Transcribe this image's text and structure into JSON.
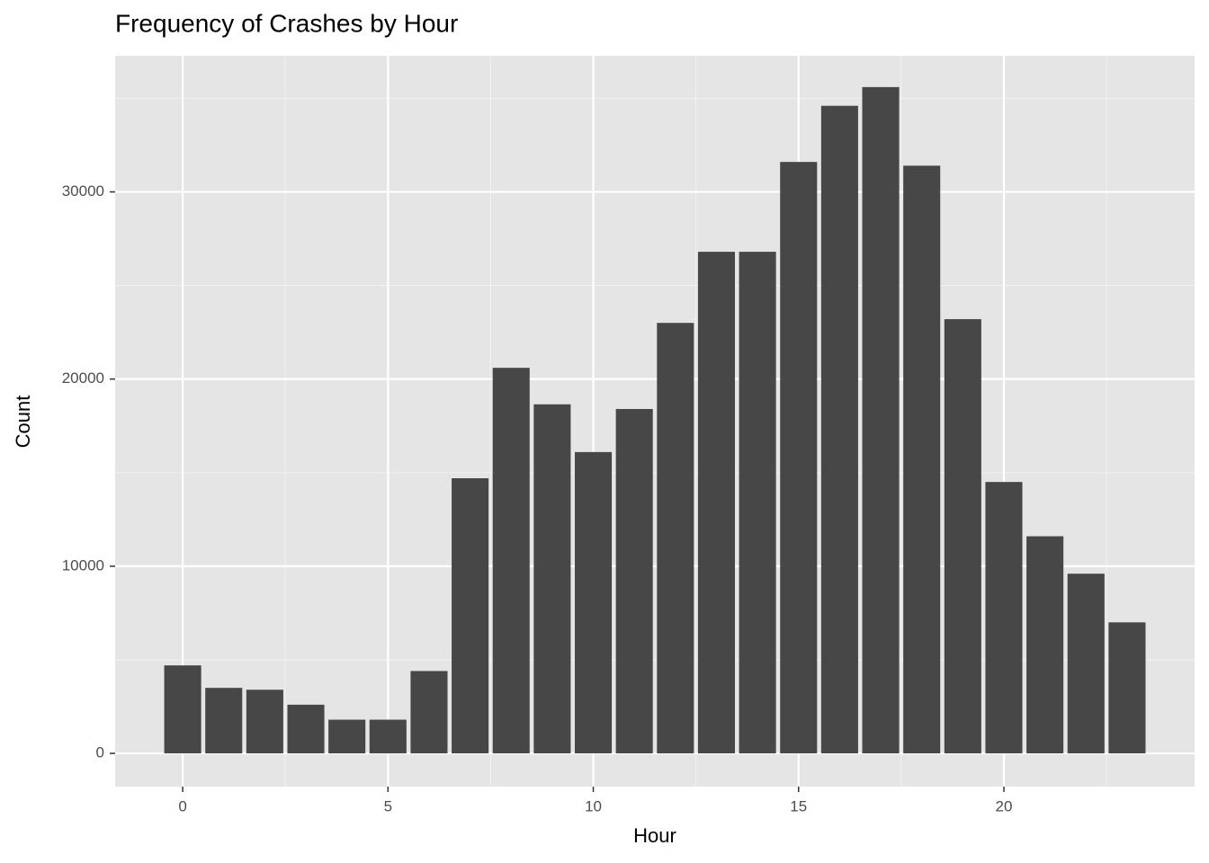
{
  "chart_data": {
    "type": "bar",
    "title": "Frequency of Crashes by Hour",
    "x_label": "Hour",
    "y_label": "Count",
    "x": [
      0,
      1,
      2,
      3,
      4,
      5,
      6,
      7,
      8,
      9,
      10,
      11,
      12,
      13,
      14,
      15,
      16,
      17,
      18,
      19,
      20,
      21,
      22,
      23
    ],
    "values": [
      4700,
      3500,
      3400,
      2600,
      1800,
      1800,
      4400,
      14700,
      20600,
      18650,
      16100,
      18400,
      23000,
      26800,
      26800,
      31600,
      34600,
      35600,
      31400,
      23200,
      14500,
      11600,
      9600,
      7000
    ],
    "color": "#474747",
    "xlim": [
      -1.645,
      24.645
    ],
    "xticks": [
      0,
      5,
      10,
      15,
      20
    ],
    "ylim": [
      -1775,
      37275
    ],
    "yticks": [
      0,
      10000,
      20000,
      30000
    ],
    "grid": true
  }
}
